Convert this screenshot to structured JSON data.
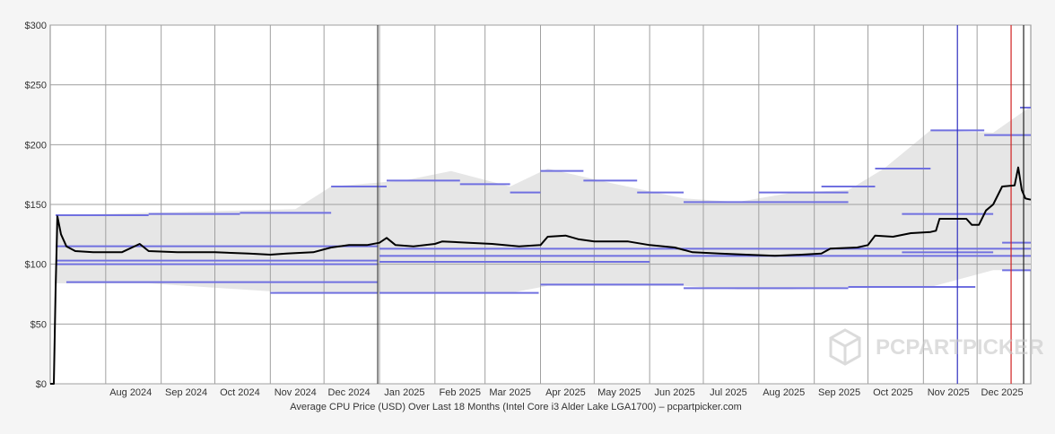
{
  "chart_data": {
    "type": "line",
    "title": "",
    "caption": "Average CPU Price (USD) Over Last 18 Months (Intel Core i3 Alder Lake LGA1700) – pcpartpicker.com",
    "ylabel": "",
    "xlabel": "",
    "ylim": [
      0,
      300
    ],
    "yticks": [
      0,
      50,
      100,
      150,
      200,
      250,
      300
    ],
    "ytick_labels": [
      "$0",
      "$50",
      "$100",
      "$150",
      "$200",
      "$250",
      "$300"
    ],
    "x_range": [
      "2024-07-01",
      "2025-12-31"
    ],
    "month_labels": [
      {
        "label": "Aug 2024",
        "date": "2024-08-15"
      },
      {
        "label": "Sep 2024",
        "date": "2024-09-15"
      },
      {
        "label": "Oct 2024",
        "date": "2024-10-15"
      },
      {
        "label": "Nov 2024",
        "date": "2024-11-15"
      },
      {
        "label": "Dec 2024",
        "date": "2024-12-15"
      },
      {
        "label": "Jan 2025",
        "date": "2025-01-15"
      },
      {
        "label": "Feb 2025",
        "date": "2025-02-15"
      },
      {
        "label": "Mar 2025",
        "date": "2025-03-15"
      },
      {
        "label": "Apr 2025",
        "date": "2025-04-15"
      },
      {
        "label": "May 2025",
        "date": "2025-05-15"
      },
      {
        "label": "Jun 2025",
        "date": "2025-06-15"
      },
      {
        "label": "Jul 2025",
        "date": "2025-07-15"
      },
      {
        "label": "Aug 2025",
        "date": "2025-08-15"
      },
      {
        "label": "Sep 2025",
        "date": "2025-09-15"
      },
      {
        "label": "Oct 2025",
        "date": "2025-10-15"
      },
      {
        "label": "Nov 2025",
        "date": "2025-11-15"
      },
      {
        "label": "Dec 2025",
        "date": "2025-12-15"
      }
    ],
    "grid": true,
    "series": [
      {
        "kind": "average",
        "color": "#000000",
        "points": [
          [
            "2024-07-01",
            0
          ],
          [
            "2024-07-03",
            0
          ],
          [
            "2024-07-04",
            80
          ],
          [
            "2024-07-05",
            140
          ],
          [
            "2024-07-07",
            125
          ],
          [
            "2024-07-10",
            115
          ],
          [
            "2024-07-15",
            111
          ],
          [
            "2024-07-25",
            110
          ],
          [
            "2024-08-10",
            110
          ],
          [
            "2024-08-20",
            117
          ],
          [
            "2024-08-25",
            111
          ],
          [
            "2024-09-10",
            110
          ],
          [
            "2024-10-01",
            110
          ],
          [
            "2024-10-20",
            109
          ],
          [
            "2024-11-01",
            108
          ],
          [
            "2024-11-10",
            109
          ],
          [
            "2024-11-25",
            110
          ],
          [
            "2024-12-05",
            114
          ],
          [
            "2024-12-15",
            116
          ],
          [
            "2024-12-25",
            116
          ],
          [
            "2025-01-01",
            118
          ],
          [
            "2025-01-05",
            122
          ],
          [
            "2025-01-10",
            116
          ],
          [
            "2025-01-20",
            115
          ],
          [
            "2025-02-01",
            117
          ],
          [
            "2025-02-05",
            119
          ],
          [
            "2025-02-20",
            118
          ],
          [
            "2025-03-05",
            117
          ],
          [
            "2025-03-20",
            115
          ],
          [
            "2025-04-01",
            116
          ],
          [
            "2025-04-05",
            123
          ],
          [
            "2025-04-15",
            124
          ],
          [
            "2025-04-22",
            121
          ],
          [
            "2025-05-01",
            119
          ],
          [
            "2025-05-20",
            119
          ],
          [
            "2025-06-01",
            116
          ],
          [
            "2025-06-15",
            114
          ],
          [
            "2025-06-25",
            110
          ],
          [
            "2025-07-10",
            109
          ],
          [
            "2025-07-25",
            108
          ],
          [
            "2025-08-10",
            107
          ],
          [
            "2025-08-25",
            108
          ],
          [
            "2025-09-05",
            109
          ],
          [
            "2025-09-10",
            113
          ],
          [
            "2025-09-25",
            114
          ],
          [
            "2025-10-01",
            116
          ],
          [
            "2025-10-05",
            124
          ],
          [
            "2025-10-15",
            123
          ],
          [
            "2025-10-25",
            126
          ],
          [
            "2025-11-05",
            127
          ],
          [
            "2025-11-08",
            128
          ],
          [
            "2025-11-10",
            138
          ],
          [
            "2025-11-25",
            138
          ],
          [
            "2025-11-28",
            133
          ],
          [
            "2025-12-02",
            133
          ],
          [
            "2025-12-06",
            145
          ],
          [
            "2025-12-10",
            150
          ],
          [
            "2025-12-15",
            165
          ],
          [
            "2025-12-22",
            166
          ],
          [
            "2025-12-24",
            181
          ],
          [
            "2025-12-26",
            162
          ],
          [
            "2025-12-28",
            155
          ],
          [
            "2025-12-31",
            154
          ]
        ]
      }
    ],
    "price_levels": {
      "color": "#7070e0",
      "segments": [
        [
          "2024-07-04",
          "2024-08-25",
          141
        ],
        [
          "2024-08-25",
          "2024-10-15",
          142
        ],
        [
          "2024-10-15",
          "2024-12-05",
          143
        ],
        [
          "2024-07-04",
          "2024-12-31",
          115
        ],
        [
          "2024-07-04",
          "2024-12-31",
          103
        ],
        [
          "2024-07-04",
          "2024-12-31",
          100
        ],
        [
          "2024-07-10",
          "2024-12-31",
          85
        ],
        [
          "2024-11-01",
          "2024-12-31",
          76
        ],
        [
          "2024-12-05",
          "2025-01-05",
          165
        ],
        [
          "2025-01-05",
          "2025-02-15",
          170
        ],
        [
          "2025-02-15",
          "2025-03-15",
          167
        ],
        [
          "2025-03-15",
          "2025-04-01",
          160
        ],
        [
          "2025-04-01",
          "2025-04-25",
          178
        ],
        [
          "2025-04-25",
          "2025-05-25",
          170
        ],
        [
          "2025-05-25",
          "2025-06-20",
          160
        ],
        [
          "2025-06-20",
          "2025-09-20",
          152
        ],
        [
          "2025-08-01",
          "2025-09-20",
          160
        ],
        [
          "2025-01-01",
          "2025-12-31",
          113
        ],
        [
          "2025-01-01",
          "2025-12-31",
          107
        ],
        [
          "2025-01-01",
          "2025-06-01",
          102
        ],
        [
          "2025-01-01",
          "2025-03-31",
          76
        ],
        [
          "2025-04-01",
          "2025-06-20",
          83
        ],
        [
          "2025-06-20",
          "2025-09-20",
          80
        ],
        [
          "2025-09-20",
          "2025-11-30",
          81
        ],
        [
          "2025-09-05",
          "2025-10-05",
          165
        ],
        [
          "2025-10-05",
          "2025-11-05",
          180
        ],
        [
          "2025-11-05",
          "2025-12-05",
          212
        ],
        [
          "2025-12-05",
          "2025-12-31",
          208
        ],
        [
          "2025-12-25",
          "2025-12-31",
          231
        ],
        [
          "2025-10-20",
          "2025-12-10",
          142
        ],
        [
          "2025-10-20",
          "2025-12-10",
          110
        ],
        [
          "2025-12-15",
          "2025-12-31",
          118
        ],
        [
          "2025-12-15",
          "2025-12-31",
          95
        ]
      ]
    },
    "price_band": [
      [
        "2024-07-04",
        141,
        84
      ],
      [
        "2024-08-25",
        143,
        84
      ],
      [
        "2024-11-15",
        146,
        76
      ],
      [
        "2024-12-05",
        165,
        76
      ],
      [
        "2025-01-15",
        170,
        76
      ],
      [
        "2025-02-10",
        178,
        76
      ],
      [
        "2025-03-15",
        165,
        76
      ],
      [
        "2025-04-05",
        180,
        82
      ],
      [
        "2025-05-10",
        168,
        82
      ],
      [
        "2025-06-20",
        155,
        82
      ],
      [
        "2025-07-20",
        152,
        79
      ],
      [
        "2025-08-20",
        160,
        79
      ],
      [
        "2025-09-20",
        162,
        81
      ],
      [
        "2025-10-10",
        180,
        81
      ],
      [
        "2025-11-05",
        212,
        81
      ],
      [
        "2025-12-10",
        210,
        95
      ],
      [
        "2025-12-31",
        232,
        95
      ]
    ],
    "vertical_markers": [
      {
        "date": "2024-12-31",
        "color": "#444444"
      },
      {
        "date": "2025-11-20",
        "color": "#3030c0"
      },
      {
        "date": "2025-12-20",
        "color": "#d02020"
      },
      {
        "date": "2025-12-27",
        "color": "#222222"
      }
    ],
    "watermark": "PCPARTPICKER"
  }
}
